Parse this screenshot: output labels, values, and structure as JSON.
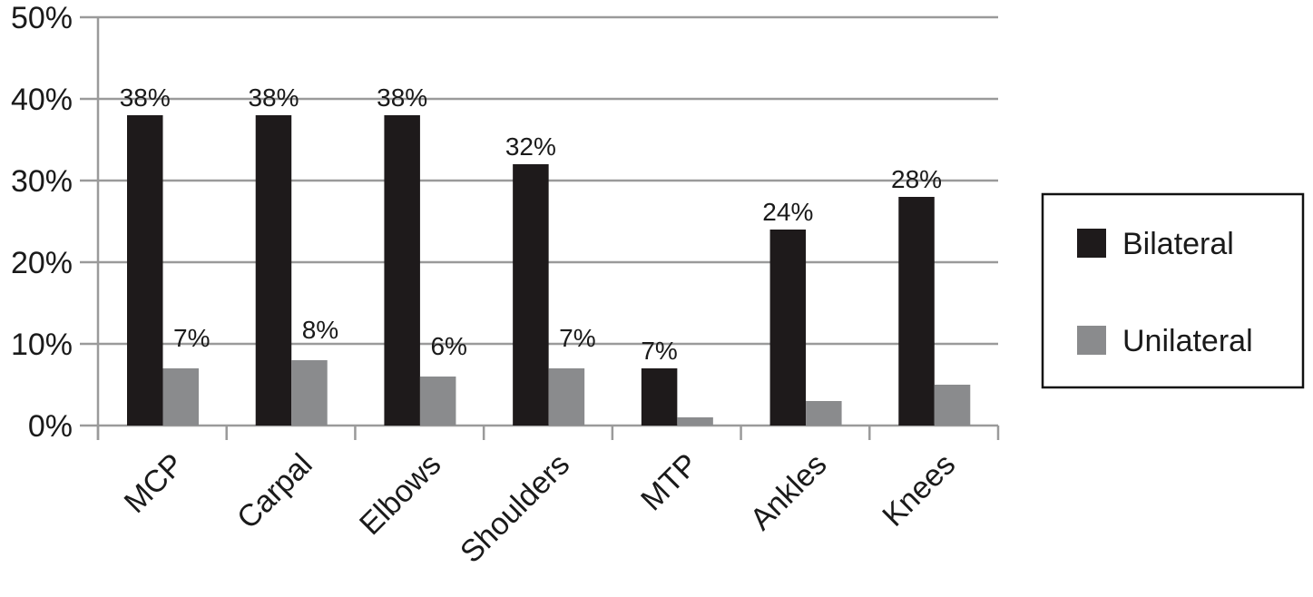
{
  "chart_data": {
    "type": "bar",
    "title": "",
    "xlabel": "",
    "ylabel": "",
    "categories": [
      "MCP",
      "Carpal",
      "Elbows",
      "Shoulders",
      "MTP",
      "Ankles",
      "Knees"
    ],
    "series": [
      {
        "name": "Bilateral",
        "color": "#1e1a1b",
        "values": [
          38,
          38,
          38,
          32,
          7,
          24,
          28
        ],
        "labels": [
          "38%",
          "38%",
          "38%",
          "32%",
          "7%",
          "24%",
          "28%"
        ]
      },
      {
        "name": "Unilateral",
        "color": "#8a8b8d",
        "values": [
          7,
          8,
          6,
          7,
          1,
          3,
          5
        ],
        "labels": [
          "7%",
          "8%",
          "6%",
          "7%",
          "",
          "",
          ""
        ]
      }
    ],
    "ylim": [
      0,
      50
    ],
    "yticks": [
      "0%",
      "10%",
      "20%",
      "30%",
      "40%",
      "50%"
    ],
    "grid": true,
    "legend": "right"
  }
}
